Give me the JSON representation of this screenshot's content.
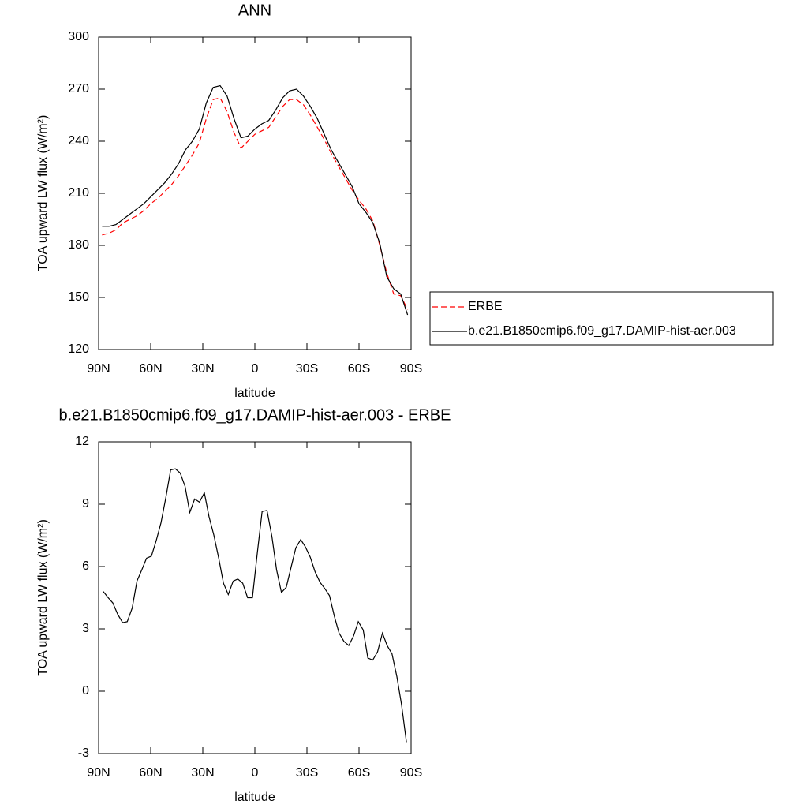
{
  "chart_data": [
    {
      "type": "line",
      "title": "ANN",
      "xlabel": "latitude",
      "ylabel": "TOA upward LW flux (W/m²)",
      "xlim": [
        90,
        -90
      ],
      "xticks": [
        {
          "value": 90,
          "label": "90N"
        },
        {
          "value": 60,
          "label": "60N"
        },
        {
          "value": 30,
          "label": "30N"
        },
        0,
        {
          "value": -30,
          "label": "30S"
        },
        {
          "value": -60,
          "label": "60S"
        },
        {
          "value": -90,
          "label": "90S"
        }
      ],
      "ylim": [
        120,
        300
      ],
      "yticks": [
        120,
        150,
        180,
        210,
        240,
        270,
        300
      ],
      "legend": "outside-right",
      "x": [
        88,
        84,
        80,
        76,
        72,
        68,
        64,
        60,
        56,
        52,
        48,
        44,
        40,
        36,
        32,
        28,
        24,
        20,
        16,
        12,
        8,
        4,
        0,
        -4,
        -8,
        -12,
        -16,
        -20,
        -24,
        -28,
        -32,
        -36,
        -40,
        -44,
        -48,
        -52,
        -56,
        -60,
        -64,
        -68,
        -72,
        -76,
        -80,
        -84,
        -88
      ],
      "series": [
        {
          "name": "ERBE",
          "color": "#ff0000",
          "dash": true,
          "values": [
            186,
            187,
            189,
            193,
            195,
            197,
            200,
            204,
            207,
            211,
            215,
            220,
            226,
            232,
            239,
            253,
            264,
            265,
            257,
            245,
            236,
            240,
            244,
            246,
            248,
            254,
            260,
            264,
            264,
            261,
            255,
            248,
            241,
            233,
            226,
            219,
            212,
            206,
            201,
            194,
            180,
            164,
            152,
            151,
            143
          ]
        },
        {
          "name": "b.e21.B1850cmip6.f09_g17.DAMIP-hist-aer.003",
          "color": "#000000",
          "dash": false,
          "values": [
            191,
            191,
            192,
            195,
            198,
            201,
            204,
            208,
            212,
            216,
            221,
            227,
            235,
            240,
            247,
            262,
            271,
            272,
            266,
            253,
            242,
            243,
            247,
            250,
            252,
            258,
            265,
            269,
            270,
            266,
            260,
            253,
            244,
            235,
            228,
            221,
            214,
            204,
            199,
            193,
            181,
            162,
            155,
            152,
            140
          ]
        }
      ]
    },
    {
      "type": "line",
      "title": "b.e21.B1850cmip6.f09_g17.DAMIP-hist-aer.003 - ERBE",
      "xlabel": "latitude",
      "ylabel": "TOA upward LW flux (W/m²)",
      "xlim": [
        90,
        -90
      ],
      "xticks": [
        {
          "value": 90,
          "label": "90N"
        },
        {
          "value": 60,
          "label": "60N"
        },
        {
          "value": 30,
          "label": "30N"
        },
        0,
        {
          "value": -30,
          "label": "30S"
        },
        {
          "value": -60,
          "label": "60S"
        },
        {
          "value": -90,
          "label": "90S"
        }
      ],
      "ylim": [
        -3,
        12
      ],
      "yticks": [
        -3,
        0,
        3,
        6,
        9,
        12
      ],
      "color": "#000000",
      "x": [
        87.3,
        84.5,
        81.8,
        79.0,
        76.2,
        73.5,
        70.7,
        67.9,
        65.1,
        62.4,
        59.6,
        56.8,
        54.1,
        51.3,
        48.5,
        45.8,
        43.0,
        40.2,
        37.5,
        34.7,
        31.9,
        29.1,
        26.4,
        23.6,
        20.8,
        18.1,
        15.3,
        12.5,
        9.8,
        7.0,
        4.2,
        1.4,
        -1.4,
        -4.2,
        -7.0,
        -9.8,
        -12.5,
        -15.3,
        -18.1,
        -20.8,
        -23.6,
        -26.4,
        -29.1,
        -31.9,
        -34.7,
        -37.5,
        -40.2,
        -43.0,
        -45.8,
        -48.5,
        -51.3,
        -54.1,
        -56.8,
        -59.6,
        -62.4,
        -65.1,
        -67.9,
        -70.7,
        -73.5,
        -76.2,
        -79.0,
        -81.8,
        -84.5,
        -87.3
      ],
      "values": [
        4.8,
        4.5,
        4.25,
        3.7,
        3.3,
        3.35,
        4.0,
        5.3,
        5.85,
        6.4,
        6.5,
        7.25,
        8.1,
        9.3,
        10.65,
        10.7,
        10.5,
        9.85,
        8.6,
        9.25,
        9.1,
        9.55,
        8.4,
        7.5,
        6.4,
        5.2,
        4.65,
        5.3,
        5.4,
        5.2,
        4.5,
        4.5,
        6.65,
        8.65,
        8.7,
        7.45,
        5.85,
        4.75,
        5.0,
        5.95,
        6.9,
        7.3,
        6.95,
        6.45,
        5.75,
        5.25,
        4.95,
        4.6,
        3.6,
        2.8,
        2.4,
        2.2,
        2.65,
        3.35,
        2.95,
        1.6,
        1.5,
        1.9,
        2.8,
        2.2,
        1.8,
        0.7,
        -0.65,
        -2.45
      ]
    }
  ]
}
